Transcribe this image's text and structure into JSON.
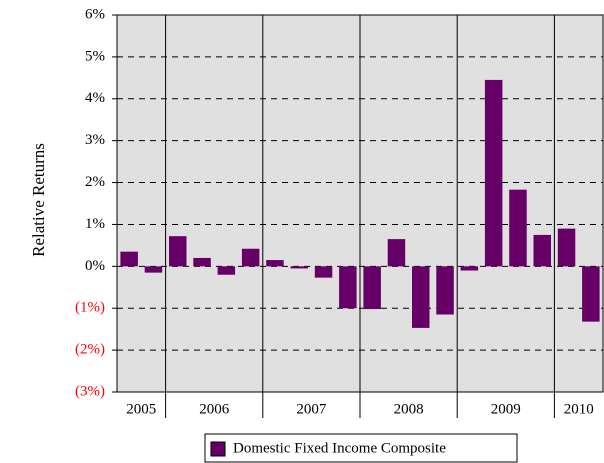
{
  "chart_data": {
    "type": "bar",
    "y_label": "Relative Returns",
    "categories": [
      "2005",
      null,
      "2006",
      null,
      null,
      null,
      "2007",
      null,
      null,
      null,
      "2008",
      null,
      null,
      null,
      "2009",
      null,
      null,
      null,
      "2010",
      null
    ],
    "series": [
      {
        "name": "Domestic Fixed Income Composite",
        "color": "#660066",
        "values": [
          0.35,
          -0.15,
          0.72,
          0.2,
          -0.2,
          0.42,
          0.15,
          -0.05,
          -0.27,
          -1.0,
          -1.02,
          0.65,
          -1.47,
          -1.15,
          -0.1,
          4.45,
          1.83,
          0.75,
          0.9,
          -1.32
        ]
      }
    ],
    "ylim": [
      -3,
      6
    ],
    "yticks": [
      {
        "value": -3,
        "label": "(3%)"
      },
      {
        "value": -2,
        "label": "(2%)"
      },
      {
        "value": -1,
        "label": "(1%)"
      },
      {
        "value": 0,
        "label": "0%"
      },
      {
        "value": 1,
        "label": "1%"
      },
      {
        "value": 2,
        "label": "2%"
      },
      {
        "value": 3,
        "label": "3%"
      },
      {
        "value": 4,
        "label": "4%"
      },
      {
        "value": 5,
        "label": "5%"
      },
      {
        "value": 6,
        "label": "6%"
      }
    ],
    "negative_tick_color": "#ff0000",
    "plot_background": "#e0e0e0",
    "grid": true,
    "legend": "bottom"
  }
}
